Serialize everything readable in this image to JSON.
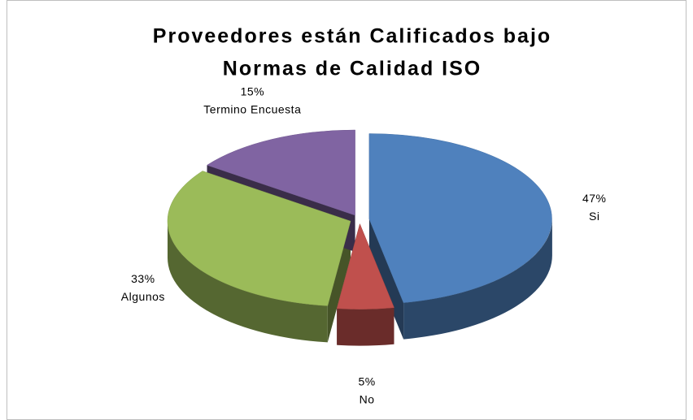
{
  "chart_data": {
    "type": "pie3d",
    "title": [
      "Proveedores están Calificados bajo",
      "Normas de Calidad ISO"
    ],
    "categories": [
      "Si",
      "No",
      "Algunos",
      "Termino Encuesta"
    ],
    "values": [
      47,
      5,
      33,
      15
    ],
    "value_labels": [
      "47%",
      "5%",
      "33%",
      "15%"
    ],
    "colors": [
      "#4f81bd",
      "#c0504d",
      "#9bbb59",
      "#8064a2"
    ]
  }
}
